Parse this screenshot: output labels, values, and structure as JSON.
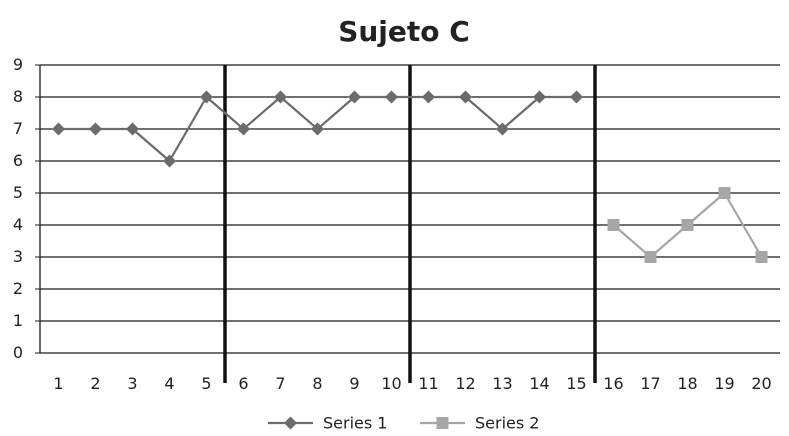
{
  "chart_data": {
    "type": "line",
    "title": "Sujeto C",
    "xlabel": "",
    "ylabel": "",
    "categories": [
      "1",
      "2",
      "3",
      "4",
      "5",
      "6",
      "7",
      "8",
      "9",
      "10",
      "11",
      "12",
      "13",
      "14",
      "15",
      "16",
      "17",
      "18",
      "19",
      "20"
    ],
    "ylim": [
      0,
      9
    ],
    "y_ticks": [
      0,
      1,
      2,
      3,
      4,
      5,
      6,
      7,
      8,
      9
    ],
    "grid": true,
    "phase_dividers_after": [
      5,
      10,
      15
    ],
    "legend_position": "bottom",
    "series": [
      {
        "name": "Series 1",
        "marker": "diamond",
        "color": "#6b6b6b",
        "values": [
          7,
          7,
          7,
          6,
          8,
          7,
          8,
          7,
          8,
          8,
          8,
          8,
          7,
          8,
          8,
          null,
          null,
          null,
          null,
          null
        ]
      },
      {
        "name": "Series 2",
        "marker": "square",
        "color": "#a6a6a6",
        "values": [
          null,
          null,
          null,
          null,
          null,
          null,
          null,
          null,
          null,
          null,
          null,
          null,
          null,
          null,
          null,
          4,
          3,
          4,
          5,
          3
        ]
      }
    ]
  }
}
